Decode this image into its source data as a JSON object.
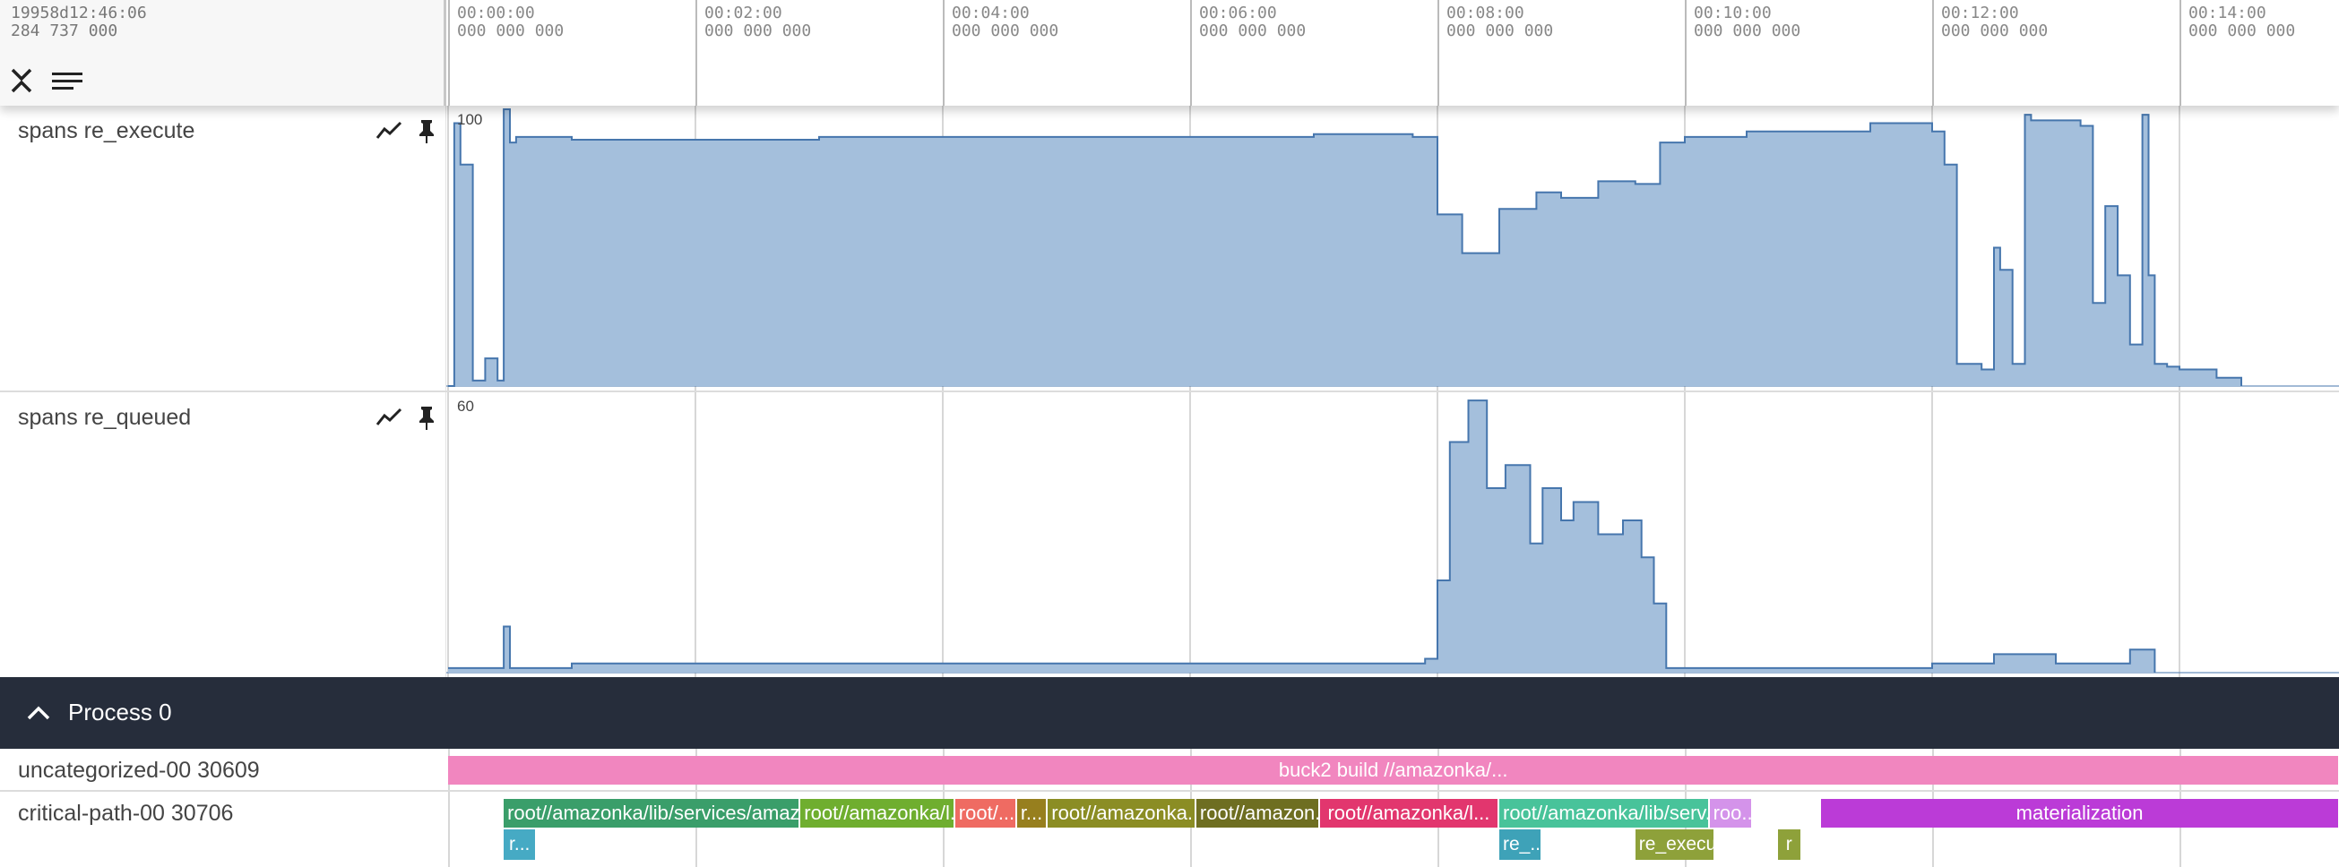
{
  "header": {
    "timestamp_line1": "19958d12:46:06",
    "timestamp_line2": "284 737 000",
    "ticks": [
      {
        "time": "00:00:00",
        "sub": "000 000 000"
      },
      {
        "time": "00:02:00",
        "sub": "000 000 000"
      },
      {
        "time": "00:04:00",
        "sub": "000 000 000"
      },
      {
        "time": "00:06:00",
        "sub": "000 000 000"
      },
      {
        "time": "00:08:00",
        "sub": "000 000 000"
      },
      {
        "time": "00:10:00",
        "sub": "000 000 000"
      },
      {
        "time": "00:12:00",
        "sub": "000 000 000"
      },
      {
        "time": "00:14:00",
        "sub": "000 000 000"
      }
    ],
    "collapse_icon": "collapse-all-icon",
    "list_icon": "list-view-icon"
  },
  "tracks": [
    {
      "title": "spans re_execute",
      "max_label": "100",
      "chart_icon": "line-chart-icon",
      "pin_icon": "pin-icon",
      "color": "#4676ad",
      "fill": "#a4bfdc"
    },
    {
      "title": "spans re_queued",
      "max_label": "60",
      "chart_icon": "line-chart-icon",
      "pin_icon": "pin-icon",
      "color": "#4676ad",
      "fill": "#a4bfdc"
    }
  ],
  "chart_data": [
    {
      "type": "area",
      "title": "spans re_execute",
      "ylim": [
        0,
        100
      ],
      "x_unit": "minutes",
      "x": [
        0.0,
        0.05,
        0.1,
        0.2,
        0.3,
        0.4,
        0.45,
        0.5,
        0.55,
        1.0,
        2.0,
        3.0,
        4.0,
        5.0,
        6.0,
        7.0,
        7.8,
        8.0,
        8.2,
        8.5,
        8.8,
        9.0,
        9.3,
        9.6,
        9.8,
        10.0,
        10.5,
        11.0,
        11.5,
        12.0,
        12.1,
        12.2,
        12.4,
        12.5,
        12.55,
        12.65,
        12.75,
        12.8,
        13.2,
        13.3,
        13.4,
        13.5,
        13.6,
        13.7,
        13.75,
        13.8,
        13.9,
        14.0,
        14.3,
        14.5
      ],
      "values": [
        0,
        95,
        80,
        2,
        10,
        2,
        100,
        88,
        90,
        89,
        89,
        90,
        90,
        90,
        90,
        91,
        90,
        62,
        48,
        64,
        70,
        68,
        74,
        73,
        88,
        90,
        92,
        92,
        95,
        92,
        80,
        8,
        6,
        50,
        42,
        8,
        98,
        96,
        94,
        30,
        65,
        40,
        15,
        98,
        40,
        8,
        7,
        6,
        3,
        0
      ]
    },
    {
      "type": "area",
      "title": "spans re_queued",
      "ylim": [
        0,
        60
      ],
      "x_unit": "minutes",
      "x": [
        0.0,
        0.4,
        0.45,
        0.5,
        1.0,
        4.0,
        7.5,
        7.9,
        8.0,
        8.1,
        8.25,
        8.4,
        8.55,
        8.75,
        8.85,
        9.0,
        9.1,
        9.3,
        9.5,
        9.65,
        9.75,
        9.85,
        10.0,
        12.0,
        12.5,
        13.0,
        13.6,
        13.8
      ],
      "values": [
        1,
        1,
        10,
        1,
        2,
        2,
        2,
        3,
        20,
        50,
        59,
        40,
        45,
        28,
        40,
        33,
        37,
        30,
        33,
        25,
        15,
        1,
        1,
        2,
        4,
        2,
        5,
        0
      ]
    }
  ],
  "process": {
    "title": "Process 0",
    "chevron_icon": "chevron-up-icon"
  },
  "slice_tracks": [
    {
      "label": "uncategorized-00 30609",
      "slices": [
        {
          "name": "buck2 build //amazonka/...",
          "start": 0.0,
          "end": 15.3,
          "color": "#f186bf"
        }
      ]
    },
    {
      "label": "critical-path-00 30706",
      "slices": [
        {
          "name": "root//amazonka/lib/services/amazonka...",
          "start": 0.45,
          "end": 2.85,
          "color": "#3a9e6a"
        },
        {
          "name": "root//amazonka/l...",
          "start": 2.85,
          "end": 4.1,
          "color": "#6fae2f"
        },
        {
          "name": "root/...",
          "start": 4.1,
          "end": 4.6,
          "color": "#ef6b62"
        },
        {
          "name": "r...",
          "start": 4.6,
          "end": 4.85,
          "color": "#977f1e"
        },
        {
          "name": "root//amazonka...",
          "start": 4.85,
          "end": 6.05,
          "color": "#8b8d24"
        },
        {
          "name": "root//amazon...",
          "start": 6.05,
          "end": 7.05,
          "color": "#6e6e21"
        },
        {
          "name": "root//amazonka/l...",
          "start": 7.05,
          "end": 8.5,
          "color": "#e2366e"
        },
        {
          "name": "root//amazonka/lib/serv...",
          "start": 8.5,
          "end": 10.2,
          "color": "#48c39a"
        },
        {
          "name": "roo...",
          "start": 10.2,
          "end": 10.55,
          "color": "#d493ea"
        },
        {
          "name": "materialization",
          "start": 11.1,
          "end": 15.3,
          "color": "#bb3bd7"
        }
      ],
      "sub_slices": [
        {
          "name": "r...",
          "start": 0.45,
          "end": 0.72,
          "color": "#46aac4"
        },
        {
          "name": "re_...",
          "start": 8.5,
          "end": 8.85,
          "color": "#3ea2b8"
        },
        {
          "name": "re_execu...",
          "start": 9.6,
          "end": 10.25,
          "color": "#8ea13a"
        },
        {
          "name": "r",
          "start": 10.75,
          "end": 10.95,
          "color": "#8ea13a"
        }
      ]
    }
  ]
}
